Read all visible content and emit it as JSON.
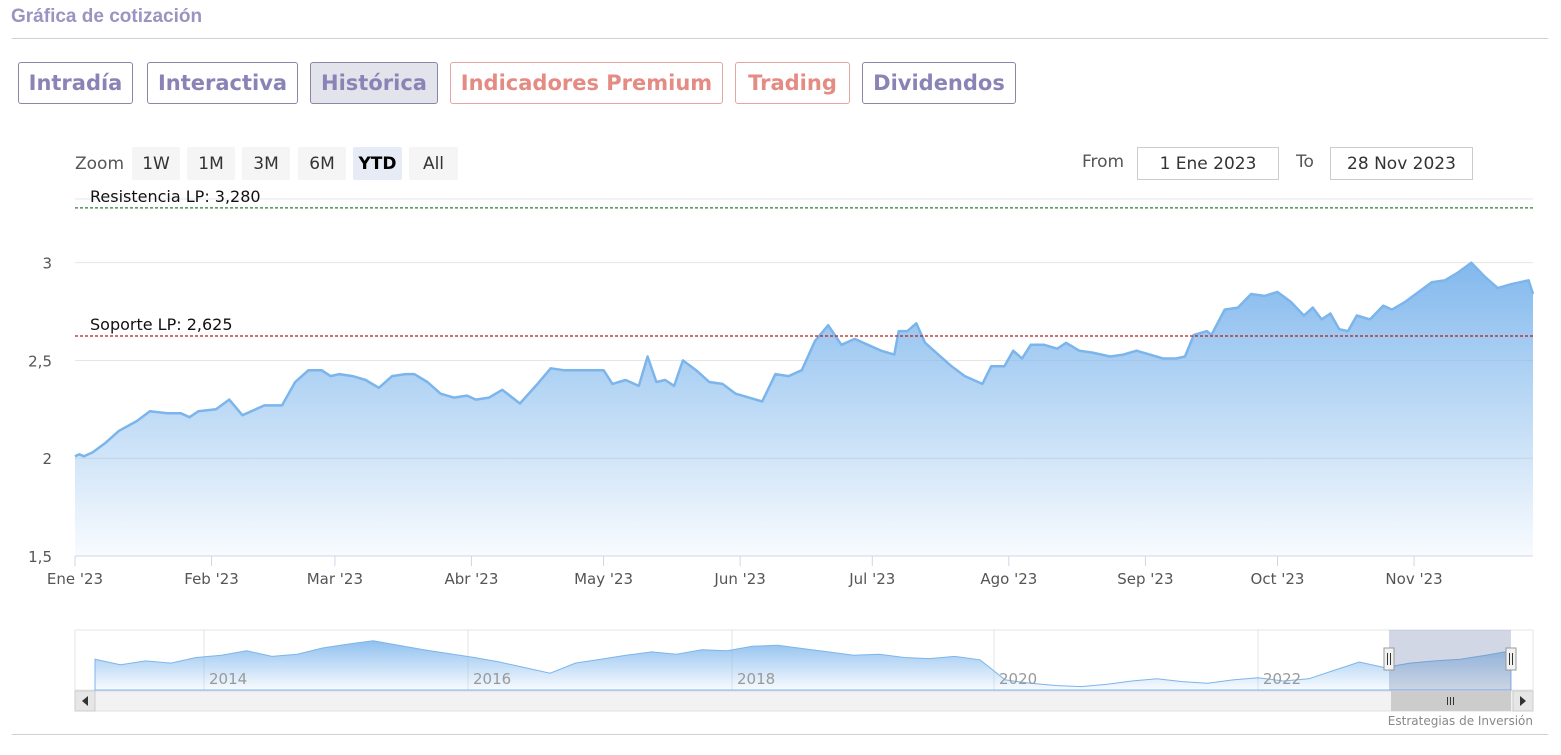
{
  "page": {
    "title": "Gráfica de cotización"
  },
  "tabs": [
    {
      "label": "Intradía",
      "style": "purple"
    },
    {
      "label": "Interactiva",
      "style": "purple"
    },
    {
      "label": "Histórica",
      "style": "purple",
      "active": true
    },
    {
      "label": "Indicadores Premium",
      "style": "red"
    },
    {
      "label": "Trading",
      "style": "red"
    },
    {
      "label": "Dividendos",
      "style": "purple"
    }
  ],
  "zoom": {
    "label": "Zoom",
    "buttons": [
      "1W",
      "1M",
      "3M",
      "6M",
      "YTD",
      "All"
    ],
    "selected": "YTD"
  },
  "range": {
    "from_label": "From",
    "from_value": "1 Ene 2023",
    "to_label": "To",
    "to_value": "28 Nov 2023"
  },
  "credits": "Estrategias de Inversión",
  "colors": {
    "series": "#7cb5ec",
    "resistance": "#2e7d32",
    "support": "#b71c1c",
    "tab_purple": "#8a84b6",
    "tab_red": "#e48b84"
  },
  "chart_data": {
    "type": "area",
    "ylim": [
      1.5,
      3.3
    ],
    "y_ticks": [
      {
        "value": 1.5,
        "label": "1,5"
      },
      {
        "value": 2,
        "label": "2"
      },
      {
        "value": 2.5,
        "label": "2,5"
      },
      {
        "value": 3,
        "label": "3"
      }
    ],
    "x_ticks": [
      {
        "date": "2023-01-01",
        "label": "Ene '23"
      },
      {
        "date": "2023-02-01",
        "label": "Feb '23"
      },
      {
        "date": "2023-03-01",
        "label": "Mar '23"
      },
      {
        "date": "2023-04-01",
        "label": "Abr '23"
      },
      {
        "date": "2023-05-01",
        "label": "May '23"
      },
      {
        "date": "2023-06-01",
        "label": "Jun '23"
      },
      {
        "date": "2023-07-01",
        "label": "Jul '23"
      },
      {
        "date": "2023-08-01",
        "label": "Ago '23"
      },
      {
        "date": "2023-09-01",
        "label": "Sep '23"
      },
      {
        "date": "2023-10-01",
        "label": "Oct '23"
      },
      {
        "date": "2023-11-01",
        "label": "Nov '23"
      }
    ],
    "x_range": [
      "2023-01-01",
      "2023-11-28"
    ],
    "plot_lines": [
      {
        "label": "Resistencia LP: 3,280",
        "value": 3.28,
        "color": "#2e7d32"
      },
      {
        "label": "Soporte LP: 2,625",
        "value": 2.625,
        "color": "#b71c1c"
      }
    ],
    "series": [
      {
        "points": [
          [
            "2023-01-01",
            2.01
          ],
          [
            "2023-01-02",
            2.02
          ],
          [
            "2023-01-03",
            2.01
          ],
          [
            "2023-01-05",
            2.03
          ],
          [
            "2023-01-08",
            2.08
          ],
          [
            "2023-01-11",
            2.14
          ],
          [
            "2023-01-15",
            2.19
          ],
          [
            "2023-01-18",
            2.24
          ],
          [
            "2023-01-22",
            2.23
          ],
          [
            "2023-01-25",
            2.23
          ],
          [
            "2023-01-27",
            2.21
          ],
          [
            "2023-01-29",
            2.24
          ],
          [
            "2023-02-02",
            2.25
          ],
          [
            "2023-02-05",
            2.3
          ],
          [
            "2023-02-08",
            2.22
          ],
          [
            "2023-02-13",
            2.27
          ],
          [
            "2023-02-17",
            2.27
          ],
          [
            "2023-02-20",
            2.39
          ],
          [
            "2023-02-23",
            2.45
          ],
          [
            "2023-02-26",
            2.45
          ],
          [
            "2023-02-28",
            2.42
          ],
          [
            "2023-03-02",
            2.43
          ],
          [
            "2023-03-05",
            2.42
          ],
          [
            "2023-03-08",
            2.4
          ],
          [
            "2023-03-11",
            2.36
          ],
          [
            "2023-03-14",
            2.42
          ],
          [
            "2023-03-17",
            2.43
          ],
          [
            "2023-03-19",
            2.43
          ],
          [
            "2023-03-22",
            2.39
          ],
          [
            "2023-03-25",
            2.33
          ],
          [
            "2023-03-28",
            2.31
          ],
          [
            "2023-03-31",
            2.32
          ],
          [
            "2023-04-02",
            2.3
          ],
          [
            "2023-04-05",
            2.31
          ],
          [
            "2023-04-08",
            2.35
          ],
          [
            "2023-04-12",
            2.28
          ],
          [
            "2023-04-16",
            2.38
          ],
          [
            "2023-04-19",
            2.46
          ],
          [
            "2023-04-22",
            2.45
          ],
          [
            "2023-04-25",
            2.45
          ],
          [
            "2023-04-28",
            2.45
          ],
          [
            "2023-05-01",
            2.45
          ],
          [
            "2023-05-03",
            2.38
          ],
          [
            "2023-05-06",
            2.4
          ],
          [
            "2023-05-09",
            2.37
          ],
          [
            "2023-05-11",
            2.52
          ],
          [
            "2023-05-13",
            2.39
          ],
          [
            "2023-05-15",
            2.4
          ],
          [
            "2023-05-17",
            2.37
          ],
          [
            "2023-05-19",
            2.5
          ],
          [
            "2023-05-22",
            2.45
          ],
          [
            "2023-05-25",
            2.39
          ],
          [
            "2023-05-28",
            2.38
          ],
          [
            "2023-05-31",
            2.33
          ],
          [
            "2023-06-03",
            2.31
          ],
          [
            "2023-06-06",
            2.29
          ],
          [
            "2023-06-09",
            2.43
          ],
          [
            "2023-06-12",
            2.42
          ],
          [
            "2023-06-15",
            2.45
          ],
          [
            "2023-06-18",
            2.6
          ],
          [
            "2023-06-21",
            2.68
          ],
          [
            "2023-06-24",
            2.58
          ],
          [
            "2023-06-27",
            2.61
          ],
          [
            "2023-06-30",
            2.58
          ],
          [
            "2023-07-03",
            2.55
          ],
          [
            "2023-07-06",
            2.53
          ],
          [
            "2023-07-07",
            2.65
          ],
          [
            "2023-07-09",
            2.65
          ],
          [
            "2023-07-11",
            2.69
          ],
          [
            "2023-07-13",
            2.59
          ],
          [
            "2023-07-16",
            2.53
          ],
          [
            "2023-07-19",
            2.47
          ],
          [
            "2023-07-22",
            2.42
          ],
          [
            "2023-07-26",
            2.38
          ],
          [
            "2023-07-28",
            2.47
          ],
          [
            "2023-07-31",
            2.47
          ],
          [
            "2023-08-02",
            2.55
          ],
          [
            "2023-08-04",
            2.51
          ],
          [
            "2023-08-06",
            2.58
          ],
          [
            "2023-08-09",
            2.58
          ],
          [
            "2023-08-12",
            2.56
          ],
          [
            "2023-08-14",
            2.59
          ],
          [
            "2023-08-17",
            2.55
          ],
          [
            "2023-08-20",
            2.54
          ],
          [
            "2023-08-24",
            2.52
          ],
          [
            "2023-08-27",
            2.53
          ],
          [
            "2023-08-30",
            2.55
          ],
          [
            "2023-09-02",
            2.53
          ],
          [
            "2023-09-05",
            2.51
          ],
          [
            "2023-09-08",
            2.51
          ],
          [
            "2023-09-10",
            2.52
          ],
          [
            "2023-09-12",
            2.63
          ],
          [
            "2023-09-15",
            2.65
          ],
          [
            "2023-09-16",
            2.63
          ],
          [
            "2023-09-19",
            2.76
          ],
          [
            "2023-09-22",
            2.77
          ],
          [
            "2023-09-25",
            2.84
          ],
          [
            "2023-09-28",
            2.83
          ],
          [
            "2023-10-01",
            2.85
          ],
          [
            "2023-10-04",
            2.8
          ],
          [
            "2023-10-07",
            2.73
          ],
          [
            "2023-10-09",
            2.77
          ],
          [
            "2023-10-11",
            2.71
          ],
          [
            "2023-10-13",
            2.74
          ],
          [
            "2023-10-15",
            2.66
          ],
          [
            "2023-10-17",
            2.65
          ],
          [
            "2023-10-19",
            2.73
          ],
          [
            "2023-10-22",
            2.71
          ],
          [
            "2023-10-25",
            2.78
          ],
          [
            "2023-10-27",
            2.76
          ],
          [
            "2023-10-30",
            2.8
          ],
          [
            "2023-11-02",
            2.85
          ],
          [
            "2023-11-05",
            2.9
          ],
          [
            "2023-11-08",
            2.91
          ],
          [
            "2023-11-11",
            2.95
          ],
          [
            "2023-11-14",
            3.0
          ],
          [
            "2023-11-17",
            2.93
          ],
          [
            "2023-11-20",
            2.87
          ],
          [
            "2023-11-23",
            2.89
          ],
          [
            "2023-11-27",
            2.91
          ],
          [
            "2023-11-28",
            2.84
          ],
          [
            "2023-11-28",
            2.84
          ]
        ]
      }
    ]
  },
  "navigator": {
    "year_labels": [
      "2014",
      "2016",
      "2018",
      "2020",
      "2022"
    ],
    "series": [
      0.55,
      0.45,
      0.52,
      0.48,
      0.58,
      0.62,
      0.7,
      0.6,
      0.64,
      0.75,
      0.82,
      0.88,
      0.8,
      0.72,
      0.65,
      0.58,
      0.5,
      0.4,
      0.3,
      0.48,
      0.55,
      0.62,
      0.68,
      0.64,
      0.72,
      0.7,
      0.78,
      0.8,
      0.74,
      0.68,
      0.62,
      0.64,
      0.58,
      0.56,
      0.6,
      0.54,
      0.18,
      0.12,
      0.08,
      0.06,
      0.1,
      0.16,
      0.2,
      0.15,
      0.12,
      0.18,
      0.22,
      0.16,
      0.2,
      0.35,
      0.5,
      0.4,
      0.48,
      0.52,
      0.55,
      0.62,
      0.7
    ]
  }
}
